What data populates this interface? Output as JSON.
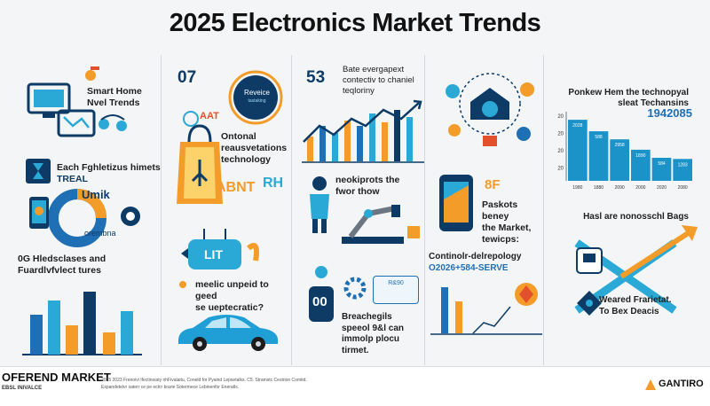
{
  "title": "2025 Electronics Market Trends",
  "colors": {
    "navy": "#0d3b66",
    "blue": "#1f6fb5",
    "cyan": "#2aa9d6",
    "orange": "#f39c2a",
    "red": "#e2502c",
    "bar": "#1b93c9"
  },
  "left": {
    "smart_home": "Smart Home\nNvel Trends",
    "block2_line1": "Each Fghletizus himets",
    "block2_line2": "TREAL",
    "donut_label1": "Umik",
    "donut_label2": "orembna",
    "block3": "0G Hledsclases and\nFuardlvfvlect tures"
  },
  "col2": {
    "badge": "07",
    "circle_text1": "Reveice",
    "circle_text2": "tastaking",
    "aat": "AAT",
    "text": "Ontonal\nreausvetations\ntechnology",
    "abnt": "ABNT",
    "rh": "RH",
    "lit": "LIT",
    "text2": "meelic unpeid to geed\nse ueptecratic?"
  },
  "col3": {
    "badge": "53",
    "text": "Bate evergapext\ncontectiv to chaniel\nteqloriny",
    "text2": "neokiprots the\nfwor thow",
    "text3": "00",
    "text4": "Breachegils\nspeeol 9&l can\nimmolp plocu\ntirmet.",
    "gear_label": "R&90"
  },
  "col4": {
    "pct": "8F",
    "text": "Paskots beney\nthe Market,\ntewicps:",
    "text2": "Continolr-delrepology",
    "text3": "O2026+584-SERVE"
  },
  "right": {
    "chart_title": "Ponkew Hem the technopyal\nsleat Techansins",
    "big_year": "1942085",
    "text2": "Hasl are nonosschl Bags",
    "text3": "Weared Frarietat.\nTo Bex Deacis"
  },
  "chart_data": {
    "type": "bar",
    "title": "",
    "categories": [
      "1980",
      "1880",
      "2090",
      "2000",
      "2020",
      "2080"
    ],
    "values": [
      26.5,
      21.5,
      18.0,
      13.5,
      10.0,
      9.5
    ],
    "data_labels": [
      "2028",
      "588",
      "2958",
      "1890",
      "584",
      "1283"
    ],
    "ylim": [
      0,
      30
    ],
    "yticks": [
      "20",
      "20",
      "20",
      "20"
    ],
    "legend": "none",
    "grid": false
  },
  "footer": {
    "brand_left": "OFEREND MARKET",
    "brand_left_sub": "EBSL INIVALCE",
    "fine1": "2025 2023 Frenoivi Ifectinoiaty  nhFivalaitu, Coneld for Pyaind Lepsetalks. C5. Stramstc Cestrion Comitd.",
    "fine2": "Expandetelvr saterr ce pe ectcr brarie Sotermece Lebinenfor Eneratls.",
    "brand_right": "GANTIRO"
  }
}
